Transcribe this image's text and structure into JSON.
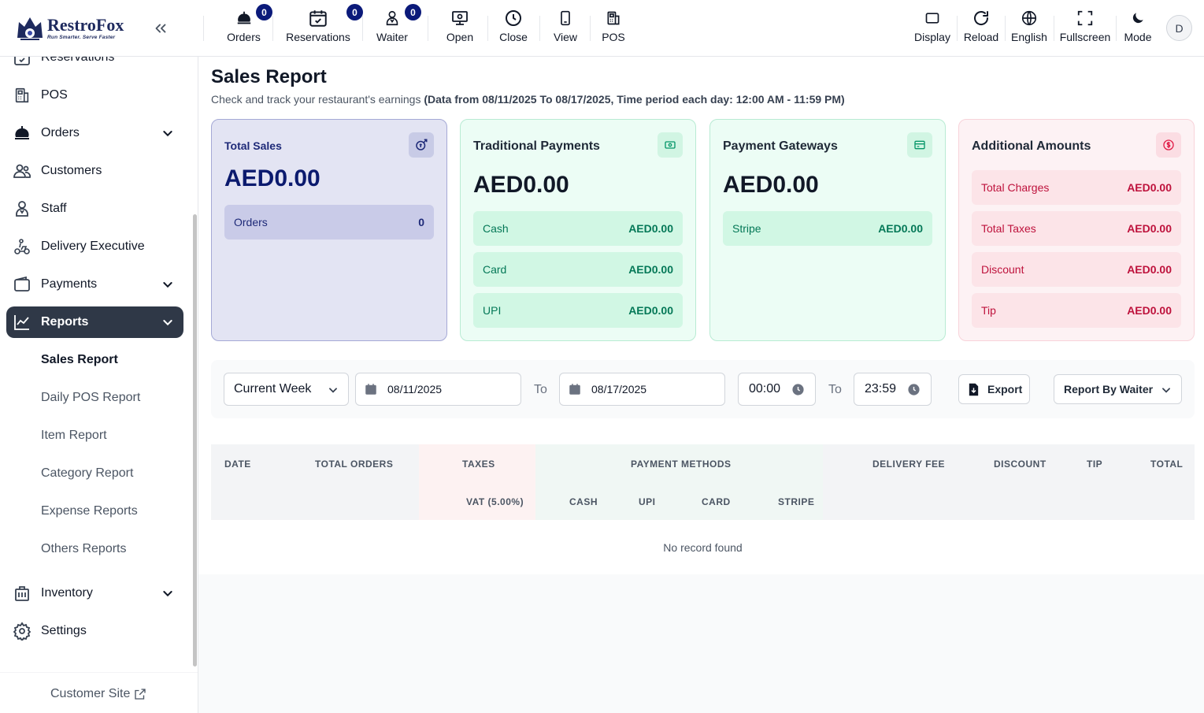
{
  "brand": {
    "name": "RestroFox",
    "tagline": "Run Smarter. Serve Faster"
  },
  "topbar": {
    "orders": {
      "label": "Orders",
      "badge": "0"
    },
    "reservations": {
      "label": "Reservations",
      "badge": "0"
    },
    "waiter": {
      "label": "Waiter",
      "badge": "0"
    },
    "open": {
      "label": "Open"
    },
    "close": {
      "label": "Close"
    },
    "view": {
      "label": "View"
    },
    "pos": {
      "label": "POS"
    },
    "display": {
      "label": "Display"
    },
    "reload": {
      "label": "Reload"
    },
    "language": {
      "label": "English"
    },
    "fullscreen": {
      "label": "Fullscreen"
    },
    "mode": {
      "label": "Mode"
    },
    "avatar": "D"
  },
  "sidebar": {
    "items": [
      {
        "label": "Reservations",
        "icon": "calendar-check-icon"
      },
      {
        "label": "POS",
        "icon": "pos-icon"
      },
      {
        "label": "Orders",
        "icon": "cloche-icon"
      },
      {
        "label": "Customers",
        "icon": "users-icon"
      },
      {
        "label": "Staff",
        "icon": "staff-icon"
      },
      {
        "label": "Delivery Executive",
        "icon": "scooter-icon"
      },
      {
        "label": "Payments",
        "icon": "wallet-icon"
      },
      {
        "label": "Reports",
        "icon": "chart-line-icon"
      },
      {
        "label": "Inventory",
        "icon": "inventory-icon"
      },
      {
        "label": "Settings",
        "icon": "gear-icon"
      }
    ],
    "report_sub": [
      "Sales Report",
      "Daily POS Report",
      "Item Report",
      "Category Report",
      "Expense Reports",
      "Others Reports"
    ],
    "customer_site": "Customer Site"
  },
  "page": {
    "title": "Sales Report",
    "subtitle": "Check and track your restaurant's earnings",
    "subtitle_bold": "(Data from 08/11/2025 To 08/17/2025, Time period each day: 12:00 AM - 11:59 PM)"
  },
  "cards": {
    "total_sales": {
      "title": "Total Sales",
      "amount": "AED0.00",
      "orders_label": "Orders",
      "orders_value": "0"
    },
    "traditional": {
      "title": "Traditional Payments",
      "amount": "AED0.00",
      "rows": [
        {
          "label": "Cash",
          "value": "AED0.00"
        },
        {
          "label": "Card",
          "value": "AED0.00"
        },
        {
          "label": "UPI",
          "value": "AED0.00"
        }
      ]
    },
    "gateways": {
      "title": "Payment Gateways",
      "amount": "AED0.00",
      "rows": [
        {
          "label": "Stripe",
          "value": "AED0.00"
        }
      ]
    },
    "additional": {
      "title": "Additional Amounts",
      "rows": [
        {
          "label": "Total Charges",
          "value": "AED0.00"
        },
        {
          "label": "Total Taxes",
          "value": "AED0.00"
        },
        {
          "label": "Discount",
          "value": "AED0.00"
        },
        {
          "label": "Tip",
          "value": "AED0.00"
        }
      ]
    }
  },
  "filters": {
    "period": "Current Week",
    "start_date": "08/11/2025",
    "to1": "To",
    "end_date": "08/17/2025",
    "start_time": "00:00",
    "to2": "To",
    "end_time": "23:59",
    "export": "Export",
    "report_by": "Report By Waiter"
  },
  "table": {
    "headers": {
      "date": "DATE",
      "total_orders": "TOTAL ORDERS",
      "taxes": "TAXES",
      "vat": "VAT (5.00%)",
      "payment_methods": "PAYMENT METHODS",
      "cash": "CASH",
      "upi": "UPI",
      "card": "CARD",
      "stripe": "STRIPE",
      "delivery_fee": "DELIVERY FEE",
      "discount": "DISCOUNT",
      "tip": "TIP",
      "total": "TOTAL"
    },
    "empty": "No record found"
  }
}
